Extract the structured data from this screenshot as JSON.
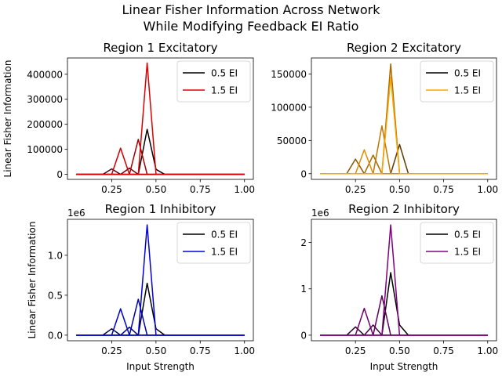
{
  "figure": {
    "title_line1": "Linear Fisher Information Across Network",
    "title_line2": "While Modifying Feedback EI Ratio"
  },
  "chart_data": [
    {
      "type": "line",
      "title": "Region 1 Excitatory",
      "xlabel": "",
      "ylabel": "Linear Fisher Information",
      "offset_text": "",
      "xlim": [
        0,
        1.05
      ],
      "ylim": [
        -20000,
        465000
      ],
      "xticks": [
        0.25,
        0.5,
        0.75,
        1.0
      ],
      "xtick_labels": [
        "0.25",
        "0.50",
        "0.75",
        "1.00"
      ],
      "yticks": [
        0,
        100000,
        200000,
        300000,
        400000
      ],
      "ytick_labels": [
        "0",
        "100000",
        "200000",
        "300000",
        "400000"
      ],
      "legend_position": "top-right",
      "x": [
        0.05,
        0.1,
        0.15,
        0.2,
        0.25,
        0.3,
        0.35,
        0.4,
        0.45,
        0.5,
        0.55,
        0.6,
        0.65,
        0.7,
        0.75,
        0.8,
        0.85,
        0.9,
        0.95,
        1.0
      ],
      "series": [
        {
          "name": "0.5 EI",
          "color": "#000000",
          "values": [
            0,
            0,
            0,
            0,
            0,
            0,
            0,
            0,
            180000,
            20000,
            0,
            0,
            0,
            0,
            0,
            0,
            0,
            0,
            0,
            0
          ]
        },
        {
          "name": "",
          "color": "#4d0000",
          "values": [
            0,
            0,
            0,
            0,
            22000,
            0,
            0,
            0,
            0,
            0,
            0,
            0,
            0,
            0,
            0,
            0,
            0,
            0,
            0,
            0
          ]
        },
        {
          "name": "",
          "color": "#7a0000",
          "values": [
            0,
            0,
            0,
            0,
            0,
            0,
            25000,
            0,
            0,
            0,
            0,
            0,
            0,
            0,
            0,
            0,
            0,
            0,
            0,
            0
          ]
        },
        {
          "name": "",
          "color": "#a60000",
          "values": [
            0,
            0,
            0,
            0,
            0,
            0,
            0,
            140000,
            0,
            0,
            0,
            0,
            0,
            0,
            0,
            0,
            0,
            0,
            0,
            0
          ]
        },
        {
          "name": "",
          "color": "#cc0000",
          "values": [
            0,
            0,
            0,
            0,
            0,
            105000,
            0,
            0,
            0,
            0,
            0,
            0,
            0,
            0,
            0,
            0,
            0,
            0,
            0,
            0
          ]
        },
        {
          "name": "1.5 EI",
          "color": "#dd0000",
          "values": [
            0,
            0,
            0,
            0,
            0,
            0,
            0,
            0,
            445000,
            0,
            0,
            0,
            0,
            0,
            0,
            0,
            0,
            0,
            0,
            0
          ]
        }
      ]
    },
    {
      "type": "line",
      "title": "Region 2 Excitatory",
      "xlabel": "",
      "ylabel": "",
      "offset_text": "",
      "xlim": [
        0,
        1.05
      ],
      "ylim": [
        -8500,
        174000
      ],
      "xticks": [
        0.25,
        0.5,
        0.75,
        1.0
      ],
      "xtick_labels": [
        "0.25",
        "0.50",
        "0.75",
        "1.00"
      ],
      "yticks": [
        0,
        50000,
        100000,
        150000
      ],
      "ytick_labels": [
        "0",
        "50000",
        "100000",
        "150000"
      ],
      "legend_position": "top-right",
      "x": [
        0.05,
        0.1,
        0.15,
        0.2,
        0.25,
        0.3,
        0.35,
        0.4,
        0.45,
        0.5,
        0.55,
        0.6,
        0.65,
        0.7,
        0.75,
        0.8,
        0.85,
        0.9,
        0.95,
        1.0
      ],
      "series": [
        {
          "name": "0.5 EI",
          "color": "#000000",
          "values": [
            0,
            0,
            0,
            0,
            0,
            0,
            0,
            0,
            0,
            0,
            0,
            0,
            0,
            0,
            0,
            0,
            0,
            0,
            0,
            0
          ]
        },
        {
          "name": "",
          "color": "#5c3a00",
          "values": [
            0,
            0,
            0,
            0,
            0,
            0,
            0,
            0,
            0,
            44000,
            0,
            0,
            0,
            0,
            0,
            0,
            0,
            0,
            0,
            0
          ]
        },
        {
          "name": "",
          "color": "#8a5700",
          "values": [
            0,
            0,
            0,
            0,
            22000,
            0,
            0,
            0,
            0,
            0,
            0,
            0,
            0,
            0,
            0,
            0,
            0,
            0,
            0,
            0
          ]
        },
        {
          "name": "",
          "color": "#a86a00",
          "values": [
            0,
            0,
            0,
            0,
            0,
            0,
            28000,
            0,
            165000,
            0,
            0,
            0,
            0,
            0,
            0,
            0,
            0,
            0,
            0,
            0
          ]
        },
        {
          "name": "",
          "color": "#c07800",
          "values": [
            0,
            0,
            0,
            0,
            0,
            0,
            0,
            72000,
            0,
            0,
            0,
            0,
            0,
            0,
            0,
            0,
            0,
            0,
            0,
            0
          ]
        },
        {
          "name": "",
          "color": "#e08e00",
          "values": [
            0,
            0,
            0,
            0,
            0,
            36000,
            0,
            0,
            0,
            0,
            0,
            0,
            0,
            0,
            0,
            0,
            0,
            0,
            0,
            0
          ]
        },
        {
          "name": "1.5 EI",
          "color": "#ffa500",
          "values": [
            0,
            0,
            0,
            0,
            0,
            0,
            0,
            0,
            145000,
            0,
            0,
            0,
            0,
            0,
            0,
            0,
            0,
            0,
            0,
            0
          ]
        }
      ]
    },
    {
      "type": "line",
      "title": "Region 1 Inhibitory",
      "xlabel": "Input Strength",
      "ylabel": "Linear Fisher Information",
      "offset_text": "1e6",
      "xlim": [
        0,
        1.05
      ],
      "ylim": [
        -0.07,
        1.45
      ],
      "xticks": [
        0.25,
        0.5,
        0.75,
        1.0
      ],
      "xtick_labels": [
        "0.25",
        "0.50",
        "0.75",
        "1.00"
      ],
      "yticks": [
        0,
        0.5,
        1.0
      ],
      "ytick_labels": [
        "0.0",
        "0.5",
        "1.0"
      ],
      "legend_position": "top-right",
      "x": [
        0.05,
        0.1,
        0.15,
        0.2,
        0.25,
        0.3,
        0.35,
        0.4,
        0.45,
        0.5,
        0.55,
        0.6,
        0.65,
        0.7,
        0.75,
        0.8,
        0.85,
        0.9,
        0.95,
        1.0
      ],
      "series": [
        {
          "name": "0.5 EI",
          "color": "#000000",
          "values": [
            0,
            0,
            0,
            0,
            0,
            0,
            0,
            0,
            0.65,
            0.08,
            0,
            0,
            0,
            0,
            0,
            0,
            0,
            0,
            0,
            0
          ]
        },
        {
          "name": "",
          "color": "#00004d",
          "values": [
            0,
            0,
            0,
            0,
            0.08,
            0,
            0,
            0,
            0,
            0,
            0,
            0,
            0,
            0,
            0,
            0,
            0,
            0,
            0,
            0
          ]
        },
        {
          "name": "",
          "color": "#000080",
          "values": [
            0,
            0,
            0,
            0,
            0,
            0,
            0.1,
            0,
            0,
            0,
            0,
            0,
            0,
            0,
            0,
            0,
            0,
            0,
            0,
            0
          ]
        },
        {
          "name": "",
          "color": "#0000aa",
          "values": [
            0,
            0,
            0,
            0,
            0,
            0,
            0,
            0.45,
            0,
            0,
            0,
            0,
            0,
            0,
            0,
            0,
            0,
            0,
            0,
            0
          ]
        },
        {
          "name": "",
          "color": "#0000cc",
          "values": [
            0,
            0,
            0,
            0,
            0,
            0.33,
            0,
            0,
            0,
            0,
            0,
            0,
            0,
            0,
            0,
            0,
            0,
            0,
            0,
            0
          ]
        },
        {
          "name": "1.5 EI",
          "color": "#0000dd",
          "values": [
            0,
            0,
            0,
            0,
            0,
            0,
            0,
            0,
            1.38,
            0,
            0,
            0,
            0,
            0,
            0,
            0,
            0,
            0,
            0,
            0
          ]
        }
      ]
    },
    {
      "type": "line",
      "title": "Region 2 Inhibitory",
      "xlabel": "Input Strength",
      "ylabel": "",
      "offset_text": "1e6",
      "xlim": [
        0,
        1.05
      ],
      "ylim": [
        -0.12,
        2.5
      ],
      "xticks": [
        0.25,
        0.5,
        0.75,
        1.0
      ],
      "xtick_labels": [
        "0.25",
        "0.50",
        "0.75",
        "1.00"
      ],
      "yticks": [
        0,
        1,
        2
      ],
      "ytick_labels": [
        "0",
        "1",
        "2"
      ],
      "legend_position": "top-right",
      "x": [
        0.05,
        0.1,
        0.15,
        0.2,
        0.25,
        0.3,
        0.35,
        0.4,
        0.45,
        0.5,
        0.55,
        0.6,
        0.65,
        0.7,
        0.75,
        0.8,
        0.85,
        0.9,
        0.95,
        1.0
      ],
      "series": [
        {
          "name": "0.5 EI",
          "color": "#000000",
          "values": [
            0,
            0,
            0,
            0,
            0,
            0,
            0,
            0,
            1.35,
            0.22,
            0,
            0,
            0,
            0,
            0,
            0,
            0,
            0,
            0,
            0
          ]
        },
        {
          "name": "",
          "color": "#2e002e",
          "values": [
            0,
            0,
            0,
            0,
            0.18,
            0,
            0,
            0,
            0,
            0,
            0,
            0,
            0,
            0,
            0,
            0,
            0,
            0,
            0,
            0
          ]
        },
        {
          "name": "",
          "color": "#4b004b",
          "values": [
            0,
            0,
            0,
            0,
            0,
            0,
            0.22,
            0,
            0,
            0,
            0,
            0,
            0,
            0,
            0,
            0,
            0,
            0,
            0,
            0
          ]
        },
        {
          "name": "",
          "color": "#5e005e",
          "values": [
            0,
            0,
            0,
            0,
            0,
            0,
            0,
            0.85,
            0,
            0,
            0,
            0,
            0,
            0,
            0,
            0,
            0,
            0,
            0,
            0
          ]
        },
        {
          "name": "",
          "color": "#700070",
          "values": [
            0,
            0,
            0,
            0,
            0,
            0.58,
            0,
            0,
            0,
            0,
            0,
            0,
            0,
            0,
            0,
            0,
            0,
            0,
            0,
            0
          ]
        },
        {
          "name": "1.5 EI",
          "color": "#800080",
          "values": [
            0,
            0,
            0,
            0,
            0,
            0,
            0,
            0,
            2.38,
            0,
            0,
            0,
            0,
            0,
            0,
            0,
            0,
            0,
            0,
            0
          ]
        }
      ]
    }
  ]
}
